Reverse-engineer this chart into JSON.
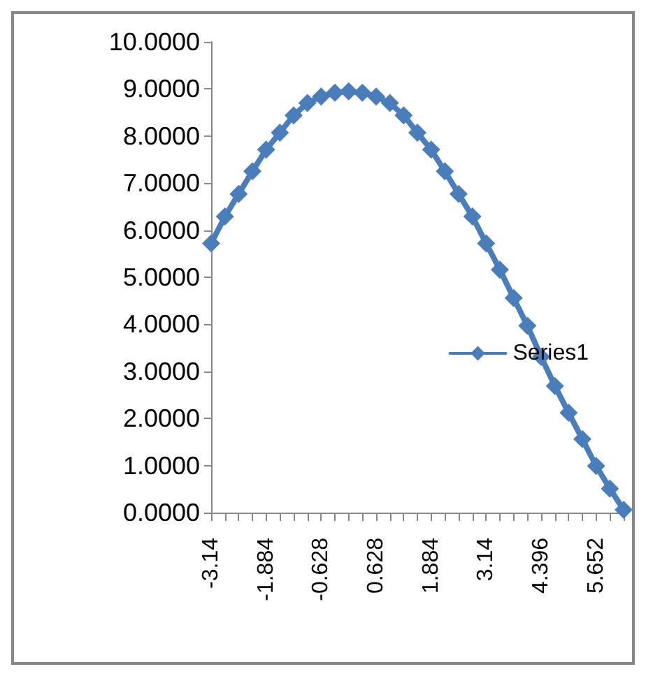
{
  "chart_data": {
    "type": "line",
    "categories": [
      "-3.14",
      null,
      null,
      null,
      "-1.884",
      null,
      null,
      null,
      "-0.628",
      null,
      null,
      null,
      "0.628",
      null,
      null,
      null,
      "1.884",
      null,
      null,
      null,
      "3.14",
      null,
      null,
      null,
      "4.396",
      null,
      null,
      null,
      "5.652",
      null,
      null
    ],
    "series": [
      {
        "name": "Series1",
        "color": "#4a7ebb",
        "values": [
          5.72,
          6.29,
          6.77,
          7.25,
          7.71,
          8.07,
          8.44,
          8.7,
          8.84,
          8.92,
          8.95,
          8.92,
          8.84,
          8.7,
          8.44,
          8.07,
          7.71,
          7.25,
          6.77,
          6.29,
          5.72,
          5.16,
          4.56,
          3.97,
          3.31,
          2.69,
          2.12,
          1.56,
          0.99,
          0.51,
          0.06
        ]
      }
    ],
    "ylim": [
      0,
      10
    ],
    "yticks": [
      {
        "value": 0,
        "label": "0.0000"
      },
      {
        "value": 1,
        "label": "1.0000"
      },
      {
        "value": 2,
        "label": "2.0000"
      },
      {
        "value": 3,
        "label": "3.0000"
      },
      {
        "value": 4,
        "label": "4.0000"
      },
      {
        "value": 5,
        "label": "5.0000"
      },
      {
        "value": 6,
        "label": "6.0000"
      },
      {
        "value": 7,
        "label": "7.0000"
      },
      {
        "value": 8,
        "label": "8.0000"
      },
      {
        "value": 9,
        "label": "9.0000"
      },
      {
        "value": 10,
        "label": "10.0000"
      }
    ],
    "grid": false,
    "legend": "right",
    "marker": "diamond",
    "line_style": "solid"
  }
}
